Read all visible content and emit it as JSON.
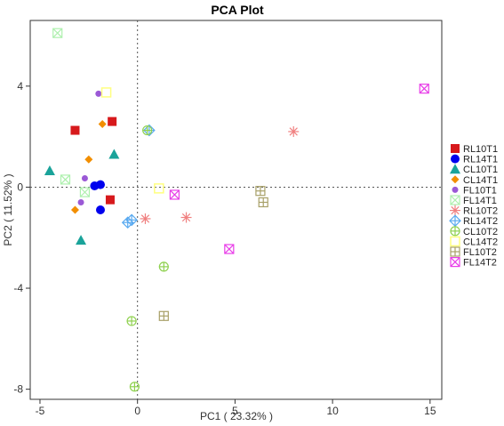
{
  "chart_data": {
    "type": "scatter",
    "title": "PCA Plot",
    "xlabel": "PC1 ( 23.32% )",
    "ylabel": "PC2 ( 11.52% )",
    "xlim": [
      -5.5,
      15.6
    ],
    "ylim": [
      -8.4,
      6.6
    ],
    "xticks": [
      -5,
      0,
      5,
      10,
      15
    ],
    "yticks": [
      -8,
      -4,
      0,
      4
    ],
    "grid": false,
    "reference_lines": {
      "x": 0,
      "y": 0,
      "style": "dotted"
    },
    "legend_position": "right",
    "series": [
      {
        "name": "RL10T1",
        "marker": "square",
        "color": "#d7191c",
        "points": [
          [
            -3.2,
            2.25
          ],
          [
            -1.3,
            2.6
          ],
          [
            -1.4,
            -0.5
          ]
        ]
      },
      {
        "name": "RL14T1",
        "marker": "circle",
        "color": "#0000ee",
        "points": [
          [
            -2.2,
            0.05
          ],
          [
            -1.9,
            0.1
          ],
          [
            -1.9,
            -0.9
          ]
        ]
      },
      {
        "name": "CL10T1",
        "marker": "triangle",
        "color": "#1aa39a",
        "points": [
          [
            -4.5,
            0.65
          ],
          [
            -1.2,
            1.3
          ],
          [
            -2.9,
            -2.1
          ]
        ]
      },
      {
        "name": "CL14T1",
        "marker": "diamond",
        "color": "#f28e00",
        "points": [
          [
            -1.8,
            2.5
          ],
          [
            -2.5,
            1.1
          ],
          [
            -3.2,
            -0.9
          ]
        ]
      },
      {
        "name": "FL10T1",
        "marker": "dot",
        "color": "#9b59d6",
        "points": [
          [
            -2.0,
            3.7
          ],
          [
            -2.7,
            0.35
          ],
          [
            -2.9,
            -0.6
          ]
        ]
      },
      {
        "name": "FL14T1",
        "marker": "square-x",
        "color": "#aef0ae",
        "points": [
          [
            -4.1,
            6.1
          ],
          [
            -3.7,
            0.3
          ],
          [
            -2.7,
            -0.2
          ]
        ]
      },
      {
        "name": "RL10T2",
        "marker": "asterisk",
        "color": "#f08080",
        "points": [
          [
            8.0,
            2.2
          ],
          [
            2.5,
            -1.2
          ],
          [
            0.4,
            -1.25
          ]
        ]
      },
      {
        "name": "RL14T2",
        "marker": "diamond-plus",
        "color": "#5aaaf0",
        "points": [
          [
            0.6,
            2.25
          ],
          [
            -0.3,
            -1.3
          ],
          [
            -0.5,
            -1.4
          ]
        ]
      },
      {
        "name": "CL10T2",
        "marker": "circle-plus",
        "color": "#8fd14f",
        "points": [
          [
            0.5,
            2.25
          ],
          [
            1.35,
            -3.15
          ],
          [
            -0.3,
            -5.3
          ],
          [
            -0.15,
            -7.9
          ]
        ]
      },
      {
        "name": "CL14T2",
        "marker": "square-open",
        "color": "#ffff80",
        "points": [
          [
            -1.6,
            3.75
          ],
          [
            1.1,
            -0.05
          ]
        ]
      },
      {
        "name": "FL10T2",
        "marker": "square-plus",
        "color": "#a8a068",
        "points": [
          [
            6.3,
            -0.15
          ],
          [
            6.45,
            -0.6
          ],
          [
            1.35,
            -5.1
          ]
        ]
      },
      {
        "name": "FL14T2",
        "marker": "square-x",
        "color": "#e83ee8",
        "points": [
          [
            14.7,
            3.9
          ],
          [
            1.9,
            -0.3
          ],
          [
            4.7,
            -2.45
          ]
        ]
      }
    ]
  }
}
